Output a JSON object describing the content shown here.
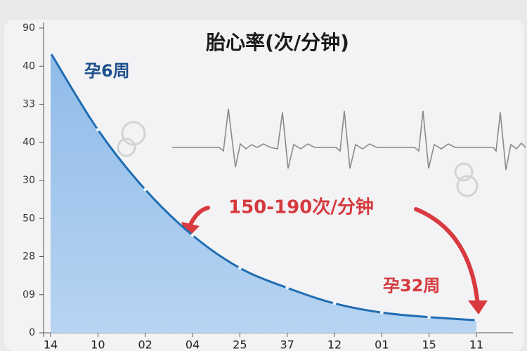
{
  "chart_data": {
    "type": "line",
    "title": "胎心率(次/分钟)",
    "annotations": [
      "孕6周",
      "150-190次/分钟",
      "孕32周"
    ],
    "categories": [
      "14",
      "10",
      "02",
      "04",
      "25",
      "37",
      "12",
      "01",
      "15",
      "11"
    ],
    "series": [
      {
        "name": null,
        "color": "#1f6db3",
        "values": [
          7.35,
          5.33,
          3.76,
          2.56,
          1.7,
          1.18,
          0.77,
          0.53,
          0.41,
          0.33
        ]
      }
    ],
    "ylim": [
      0,
      8
    ],
    "yticks": [
      0,
      {
        "value": 1,
        "label": "09"
      },
      {
        "value": 2,
        "label": "28"
      },
      {
        "value": 3,
        "label": "50"
      },
      {
        "value": 4,
        "label": "30"
      },
      {
        "value": 5,
        "label": "40"
      },
      {
        "value": 6,
        "label": "33"
      },
      {
        "value": 7,
        "label": "40"
      },
      {
        "value": 8,
        "label": "90"
      }
    ]
  }
}
